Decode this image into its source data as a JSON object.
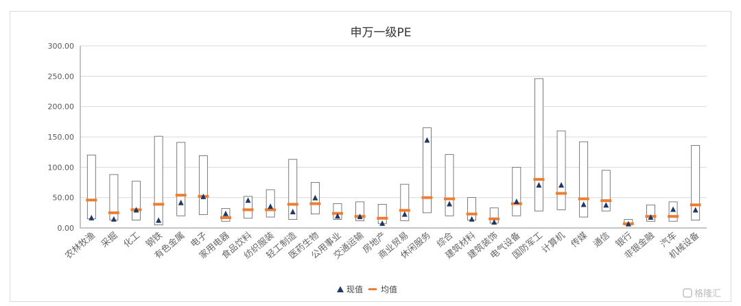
{
  "chart_data": {
    "type": "range-bar",
    "title": "申万一级PE",
    "ylim": [
      0,
      300
    ],
    "yticks": [
      "0.00",
      "50.00",
      "100.00",
      "150.00",
      "200.00",
      "250.00",
      "300.00"
    ],
    "grid": true,
    "legend_position": "bottom",
    "categories": [
      "农林牧渔",
      "采掘",
      "化工",
      "钢铁",
      "有色金属",
      "电子",
      "家用电器",
      "食品饮料",
      "纺织服装",
      "轻工制造",
      "医药生物",
      "公用事业",
      "交通运输",
      "房地产",
      "商业贸易",
      "休闲服务",
      "综合",
      "建筑材料",
      "建筑装饰",
      "电气设备",
      "国防军工",
      "计算机",
      "传媒",
      "通信",
      "银行",
      "非银金融",
      "汽车",
      "机械设备"
    ],
    "series": [
      {
        "name": "现值",
        "marker": "triangle",
        "color": "#1f3864",
        "values": [
          17,
          15,
          30,
          13,
          42,
          52,
          24,
          46,
          36,
          27,
          50,
          20,
          19,
          8,
          23,
          145,
          40,
          15,
          10,
          44,
          71,
          71,
          39,
          38,
          7,
          18,
          31,
          30
        ]
      },
      {
        "name": "均值",
        "marker": "dash",
        "color": "#ed7d31",
        "values": [
          46,
          25,
          30,
          39,
          54,
          52,
          17,
          30,
          30,
          39,
          40,
          24,
          19,
          16,
          29,
          50,
          48,
          23,
          15,
          40,
          80,
          57,
          48,
          45,
          7,
          19,
          19,
          38
        ]
      },
      {
        "name": "",
        "values_min": [
          15,
          13,
          13,
          5,
          20,
          22,
          11,
          16,
          18,
          14,
          23,
          14,
          12,
          7,
          12,
          25,
          20,
          13,
          8,
          20,
          28,
          30,
          18,
          28,
          5,
          11,
          11,
          13
        ],
        "values_max": [
          120,
          88,
          77,
          151,
          141,
          119,
          32,
          52,
          63,
          113,
          75,
          40,
          43,
          39,
          72,
          165,
          121,
          50,
          33,
          100,
          246,
          160,
          142,
          95,
          14,
          38,
          43,
          136
        ]
      }
    ]
  },
  "legend": {
    "current": "现值",
    "mean": "均值"
  },
  "watermark": "格隆汇"
}
